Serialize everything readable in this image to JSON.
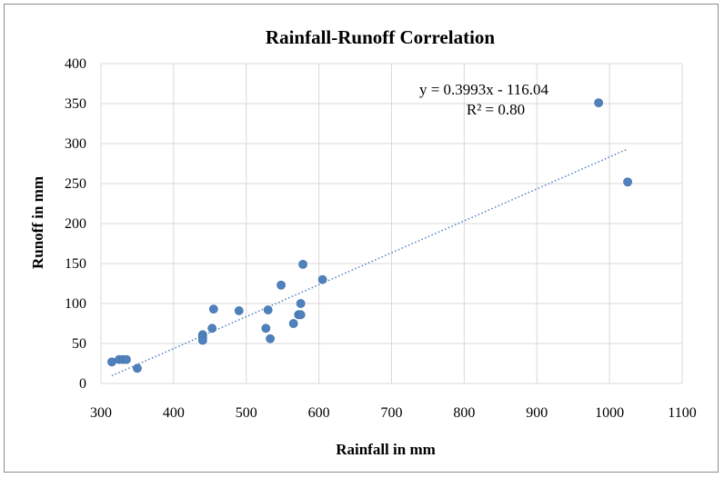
{
  "chart_data": {
    "type": "scatter",
    "title": "Rainfall-Runoff Correlation",
    "xlabel": "Rainfall in mm",
    "ylabel": "Runoff in mm",
    "xlim": [
      300,
      1100
    ],
    "ylim": [
      0,
      400
    ],
    "xticks": [
      300,
      400,
      500,
      600,
      700,
      800,
      900,
      1000,
      1100
    ],
    "yticks": [
      0,
      50,
      100,
      150,
      200,
      250,
      300,
      350,
      400
    ],
    "grid": true,
    "series": [
      {
        "name": "Runoff",
        "color": "#4f81bd",
        "x": [
          315,
          325,
          330,
          335,
          350,
          440,
          440,
          440,
          453,
          455,
          490,
          527,
          530,
          533,
          548,
          565,
          572,
          575,
          575,
          578,
          605,
          985,
          1025
        ],
        "y": [
          27,
          30,
          30,
          30,
          19,
          61,
          58,
          54,
          69,
          93,
          91,
          69,
          92,
          56,
          123,
          75,
          86,
          86,
          100,
          149,
          130,
          351,
          252
        ]
      }
    ],
    "trendline": {
      "type": "linear",
      "slope": 0.3993,
      "intercept": -116.04,
      "x_range": [
        315,
        1025
      ],
      "equation": "y = 0.3993x - 116.04",
      "r2_label": "R² = 0.80"
    }
  }
}
